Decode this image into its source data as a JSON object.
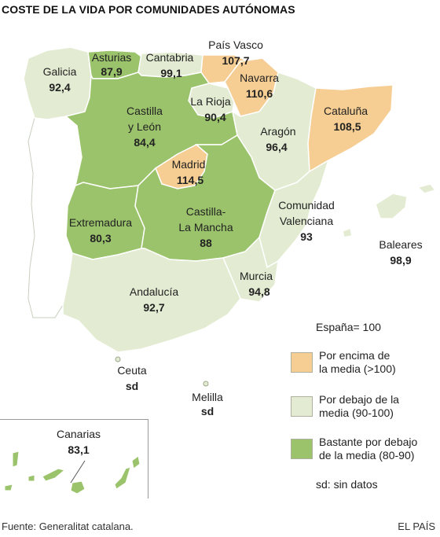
{
  "title": "COSTE DE LA VIDA POR COMUNIDADES AUTÓNOMAS",
  "colors": {
    "above": "#f6cd92",
    "below": "#e3ecd3",
    "well_below": "#9bc36b",
    "portugal": "#ffffff",
    "border": "#ffffff",
    "outline": "#9aa68a"
  },
  "regions": [
    {
      "name": "Galicia",
      "value": "92,4",
      "category": "below"
    },
    {
      "name": "Asturias",
      "value": "87,9",
      "category": "well_below"
    },
    {
      "name": "Cantabria",
      "value": "99,1",
      "category": "below"
    },
    {
      "name": "País Vasco",
      "value": "107,7",
      "category": "above"
    },
    {
      "name": "Navarra",
      "value": "110,6",
      "category": "above"
    },
    {
      "name": "La Rioja",
      "value": "90,4",
      "category": "below"
    },
    {
      "name": "Cataluña",
      "value": "108,5",
      "category": "above"
    },
    {
      "name": "Castilla y León",
      "value": "84,4",
      "category": "well_below"
    },
    {
      "name": "Aragón",
      "value": "96,4",
      "category": "below"
    },
    {
      "name": "Madrid",
      "value": "114,5",
      "category": "above"
    },
    {
      "name": "Extremadura",
      "value": "80,3",
      "category": "well_below"
    },
    {
      "name": "Castilla-La Mancha",
      "value": "88",
      "category": "well_below"
    },
    {
      "name": "Comunidad Valenciana",
      "value": "93",
      "category": "below"
    },
    {
      "name": "Baleares",
      "value": "98,9",
      "category": "below"
    },
    {
      "name": "Murcia",
      "value": "94,8",
      "category": "below"
    },
    {
      "name": "Andalucía",
      "value": "92,7",
      "category": "below"
    },
    {
      "name": "Ceuta",
      "value": "sd",
      "category": "none"
    },
    {
      "name": "Melilla",
      "value": "sd",
      "category": "none"
    },
    {
      "name": "Canarias",
      "value": "83,1",
      "category": "well_below"
    }
  ],
  "labels": {
    "castilla_leon_1": "Castilla",
    "castilla_leon_2": "y León",
    "clm_1": "Castilla-",
    "clm_2": "La Mancha",
    "valencia_1": "Comunidad",
    "valencia_2": "Valenciana"
  },
  "legend": {
    "note": "España= 100",
    "items": [
      {
        "category": "above",
        "label_1": "Por encima de",
        "label_2": "la media (>100)"
      },
      {
        "category": "below",
        "label_1": "Por debajo de la",
        "label_2": "media (90-100)"
      },
      {
        "category": "well_below",
        "label_1": "Bastante por debajo",
        "label_2": "de la media (80-90)"
      }
    ],
    "nodata": "sd: sin datos"
  },
  "source": "Fuente: Generalitat catalana.",
  "credit": "EL PAÍS"
}
